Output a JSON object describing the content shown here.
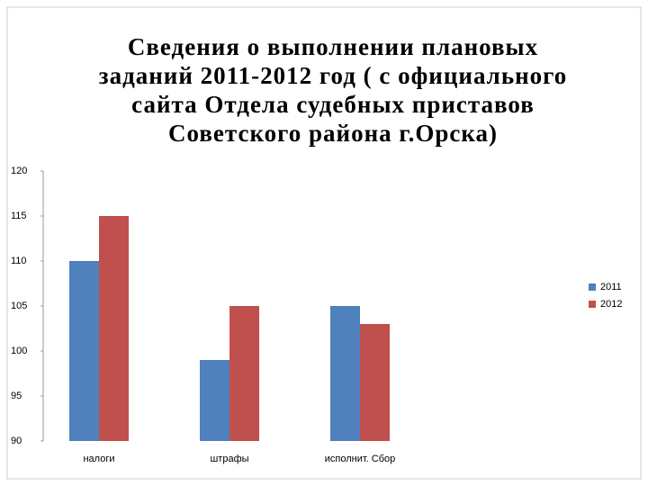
{
  "chart_data": {
    "type": "bar",
    "title": "Сведения о выполнении плановых заданий 2011-2012 год ( с официального сайта Отдела судебных приставов Советского района г.Орска)",
    "categories": [
      "налоги",
      "штрафы",
      "исполнит. Сбор"
    ],
    "series": [
      {
        "name": "2011",
        "color": "#4f81bd",
        "values": [
          110,
          99,
          105
        ]
      },
      {
        "name": "2012",
        "color": "#c0504d",
        "values": [
          115,
          105,
          103
        ]
      }
    ],
    "ylim": [
      90,
      120
    ],
    "yticks": [
      90,
      95,
      100,
      105,
      110,
      115,
      120
    ],
    "legend": "right"
  }
}
